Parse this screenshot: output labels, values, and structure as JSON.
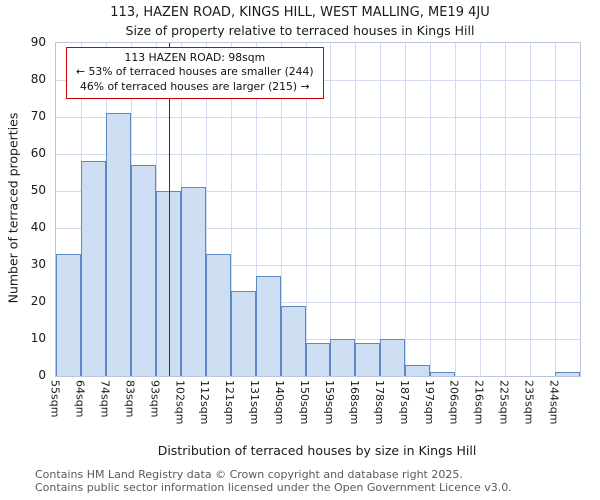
{
  "chart_data": {
    "type": "bar",
    "title": "113, HAZEN ROAD, KINGS HILL, WEST MALLING, ME19 4JU",
    "subtitle": "Size of property relative to terraced houses in Kings Hill",
    "xlabel": "Distribution of terraced houses by size in Kings Hill",
    "ylabel": "Number of terraced properties",
    "categories": [
      "55sqm",
      "64sqm",
      "74sqm",
      "83sqm",
      "93sqm",
      "102sqm",
      "112sqm",
      "121sqm",
      "131sqm",
      "140sqm",
      "150sqm",
      "159sqm",
      "168sqm",
      "178sqm",
      "187sqm",
      "197sqm",
      "206sqm",
      "216sqm",
      "225sqm",
      "235sqm",
      "244sqm"
    ],
    "values": [
      33,
      58,
      71,
      57,
      50,
      51,
      33,
      23,
      27,
      19,
      9,
      10,
      9,
      10,
      3,
      1,
      0,
      0,
      0,
      0,
      1
    ],
    "ylim": [
      0,
      90
    ],
    "yticks": [
      0,
      10,
      20,
      30,
      40,
      50,
      60,
      70,
      80,
      90
    ],
    "grid": true,
    "annotation": {
      "line1": "113 HAZEN ROAD: 98sqm",
      "line2": "← 53% of terraced houses are smaller (244)",
      "line3": "46% of terraced houses are larger (215) →"
    },
    "marker": {
      "label": "113 HAZEN ROAD",
      "value_sqm": 98,
      "bin_index": 4,
      "bin_start_sqm": 93,
      "bin_end_sqm": 102
    },
    "colors": {
      "bar_fill": "#cdddf2",
      "bar_stroke": "#5c88c6",
      "grid": "#d3dcee",
      "marker_line": "#aa0000",
      "annotation_border": "#cc0000"
    }
  },
  "footer": {
    "line1": "Contains HM Land Registry data © Crown copyright and database right 2025.",
    "line2": "Contains public sector information licensed under the Open Government Licence v3.0."
  }
}
